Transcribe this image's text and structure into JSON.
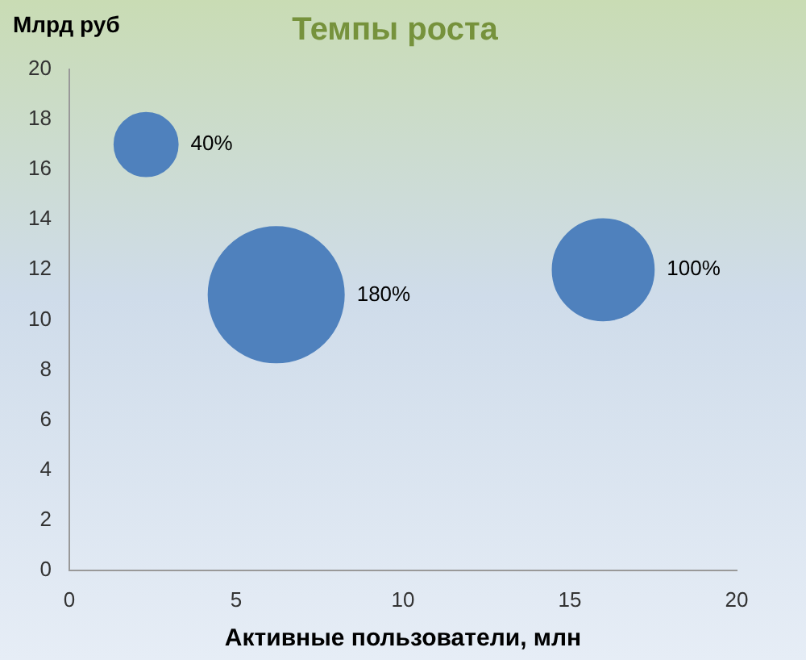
{
  "chart_data": {
    "type": "bubble",
    "title": "Темпы роста",
    "xlabel": "Активные пользователи, млн",
    "ylabel": "Млрд руб",
    "series": [
      {
        "color": "#4f81bd",
        "x": [
          2.3,
          6.2,
          16
        ],
        "values": [
          17,
          11,
          12
        ],
        "sizes": [
          0.22,
          1,
          0.56
        ]
      }
    ],
    "annotations": [
      "40%",
      "180%",
      "100%"
    ],
    "xlim": [
      0,
      20
    ],
    "xticks": [
      0,
      5,
      10,
      15,
      20
    ],
    "ylim": [
      0,
      20
    ],
    "yticks": [
      0,
      2,
      4,
      6,
      8,
      10,
      12,
      14,
      16,
      18,
      20
    ],
    "grid": false,
    "legend": false
  }
}
